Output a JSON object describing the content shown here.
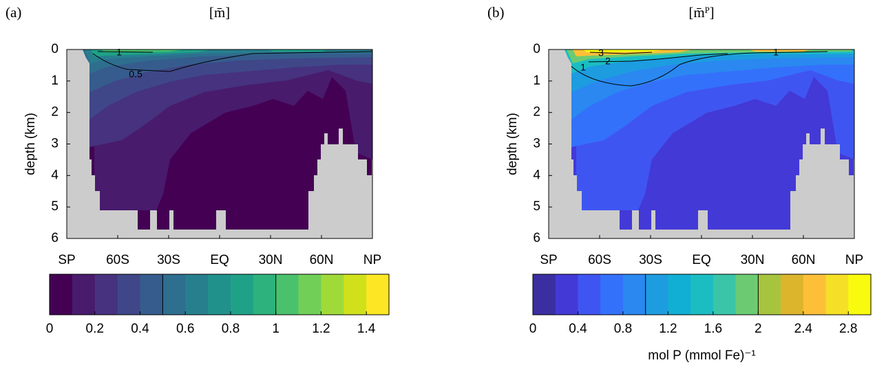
{
  "chart_data": [
    {
      "type": "contour",
      "panel_label": "(a)",
      "title": "[m̄]",
      "ylabel": "depth (km)",
      "xlim": [
        -90,
        90
      ],
      "xticks": [
        {
          "value": -90,
          "label": "SP"
        },
        {
          "value": -60,
          "label": "60S"
        },
        {
          "value": -30,
          "label": "30S"
        },
        {
          "value": 0,
          "label": "EQ"
        },
        {
          "value": 30,
          "label": "30N"
        },
        {
          "value": 60,
          "label": "60N"
        },
        {
          "value": 90,
          "label": "NP"
        }
      ],
      "ylim": [
        0,
        6
      ],
      "y_reversed": true,
      "yticks": [
        0,
        1,
        2,
        3,
        4,
        5,
        6
      ],
      "contour_levels": [
        0.5,
        1
      ],
      "colorbar": {
        "levels": [
          0,
          0.1,
          0.2,
          0.3,
          0.4,
          0.5,
          0.6,
          0.7,
          0.8,
          0.9,
          1,
          1.1,
          1.2,
          1.3,
          1.4,
          1.5
        ],
        "colors": [
          "#440154",
          "#481b6d",
          "#46327e",
          "#3f4788",
          "#365c8d",
          "#2e6e8e",
          "#277f8e",
          "#21918c",
          "#1fa187",
          "#2db27d",
          "#4ac16d",
          "#71cf57",
          "#a0da39",
          "#d0e11c",
          "#fde725"
        ],
        "ticks": [
          0,
          0.2,
          0.4,
          0.6,
          0.8,
          1,
          1.2,
          1.4
        ]
      }
    },
    {
      "type": "contour",
      "panel_label": "(b)",
      "title": "[m̄ᴾ]",
      "ylabel": "depth (km)",
      "xlim": [
        -90,
        90
      ],
      "xticks": [
        {
          "value": -90,
          "label": "SP"
        },
        {
          "value": -60,
          "label": "60S"
        },
        {
          "value": -30,
          "label": "30S"
        },
        {
          "value": 0,
          "label": "EQ"
        },
        {
          "value": 30,
          "label": "30N"
        },
        {
          "value": 60,
          "label": "60N"
        },
        {
          "value": 90,
          "label": "NP"
        }
      ],
      "ylim": [
        0,
        6
      ],
      "y_reversed": true,
      "yticks": [
        0,
        1,
        2,
        3,
        4,
        5,
        6
      ],
      "contour_levels": [
        1,
        2,
        3
      ],
      "colorbar": {
        "levels": [
          0,
          0.2,
          0.4,
          0.6,
          0.8,
          1,
          1.2,
          1.4,
          1.6,
          1.8,
          2,
          2.2,
          2.4,
          2.6,
          2.8,
          3
        ],
        "colors": [
          "#3b2ea0",
          "#4339d6",
          "#3f55f2",
          "#3471fb",
          "#2a88f0",
          "#1d9ce0",
          "#10afd3",
          "#1bbdc3",
          "#3ac5a8",
          "#6ccb72",
          "#a7c43e",
          "#dcb52c",
          "#fdbf38",
          "#f5df27",
          "#f9fb0e"
        ],
        "ticks": [
          0,
          0.4,
          0.8,
          1.2,
          1.6,
          2,
          2.4,
          2.8
        ],
        "label": "mol P (mmol Fe)⁻¹"
      }
    }
  ]
}
